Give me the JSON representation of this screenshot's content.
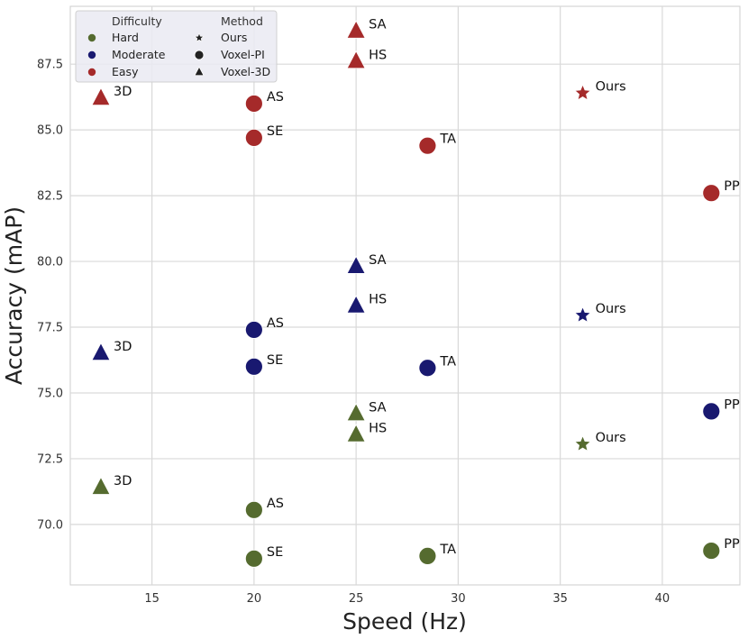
{
  "chart_data": {
    "type": "scatter",
    "xlabel": "Speed (Hz)",
    "ylabel": "Accuracy (mAP)",
    "xlim": [
      11,
      43.8
    ],
    "ylim": [
      67.7,
      89.7
    ],
    "xticks": [
      15,
      20,
      25,
      30,
      35,
      40
    ],
    "yticks": [
      70.0,
      72.5,
      75.0,
      77.5,
      80.0,
      82.5,
      85.0,
      87.5
    ],
    "grid": true,
    "legend": {
      "placement": "top-left",
      "difficulty_title": "Difficulty",
      "method_title": "Method",
      "difficulty": [
        {
          "name": "Hard",
          "color": "#556b2f"
        },
        {
          "name": "Moderate",
          "color": "#191970"
        },
        {
          "name": "Easy",
          "color": "#a52a2a"
        }
      ],
      "method": [
        {
          "name": "Ours",
          "marker": "star"
        },
        {
          "name": "Voxel-PI",
          "marker": "circle"
        },
        {
          "name": "Voxel-3D",
          "marker": "triangle"
        }
      ]
    },
    "series": [
      {
        "name": "Easy",
        "color": "#a52a2a",
        "points": [
          {
            "label": "3D",
            "x": 12.5,
            "y": 86.2,
            "marker": "triangle"
          },
          {
            "label": "AS",
            "x": 20.0,
            "y": 86.0,
            "marker": "circle"
          },
          {
            "label": "SE",
            "x": 20.0,
            "y": 84.7,
            "marker": "circle"
          },
          {
            "label": "SA",
            "x": 25.0,
            "y": 88.75,
            "marker": "triangle"
          },
          {
            "label": "HS",
            "x": 25.0,
            "y": 87.6,
            "marker": "triangle"
          },
          {
            "label": "TA",
            "x": 28.5,
            "y": 84.4,
            "marker": "circle"
          },
          {
            "label": "Ours",
            "x": 36.1,
            "y": 86.4,
            "marker": "star"
          },
          {
            "label": "PP",
            "x": 42.4,
            "y": 82.6,
            "marker": "circle"
          }
        ]
      },
      {
        "name": "Moderate",
        "color": "#191970",
        "points": [
          {
            "label": "3D",
            "x": 12.5,
            "y": 76.5,
            "marker": "triangle"
          },
          {
            "label": "AS",
            "x": 20.0,
            "y": 77.4,
            "marker": "circle"
          },
          {
            "label": "SE",
            "x": 20.0,
            "y": 76.0,
            "marker": "circle"
          },
          {
            "label": "SA",
            "x": 25.0,
            "y": 79.8,
            "marker": "triangle"
          },
          {
            "label": "HS",
            "x": 25.0,
            "y": 78.3,
            "marker": "triangle"
          },
          {
            "label": "TA",
            "x": 28.5,
            "y": 75.95,
            "marker": "circle"
          },
          {
            "label": "Ours",
            "x": 36.1,
            "y": 77.95,
            "marker": "star"
          },
          {
            "label": "PP",
            "x": 42.4,
            "y": 74.3,
            "marker": "circle"
          }
        ]
      },
      {
        "name": "Hard",
        "color": "#556b2f",
        "points": [
          {
            "label": "3D",
            "x": 12.5,
            "y": 71.4,
            "marker": "triangle"
          },
          {
            "label": "AS",
            "x": 20.0,
            "y": 70.55,
            "marker": "circle"
          },
          {
            "label": "SE",
            "x": 20.0,
            "y": 68.7,
            "marker": "circle"
          },
          {
            "label": "SA",
            "x": 25.0,
            "y": 74.2,
            "marker": "triangle"
          },
          {
            "label": "HS",
            "x": 25.0,
            "y": 73.4,
            "marker": "triangle"
          },
          {
            "label": "TA",
            "x": 28.5,
            "y": 68.8,
            "marker": "circle"
          },
          {
            "label": "Ours",
            "x": 36.1,
            "y": 73.05,
            "marker": "star"
          },
          {
            "label": "PP",
            "x": 42.4,
            "y": 69.0,
            "marker": "circle"
          }
        ]
      }
    ]
  }
}
